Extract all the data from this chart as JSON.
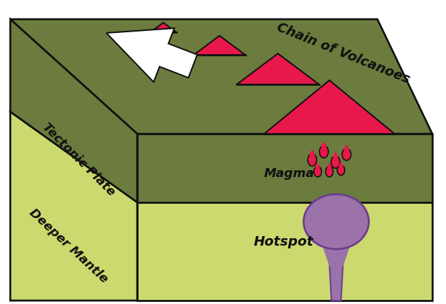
{
  "title": "Chain of Volcanoes",
  "tectonic_label": "Tectonic Plate",
  "mantle_label": "Deeper Mantle",
  "magma_label": "Magma",
  "hotspot_label": "Hotspot",
  "color_dark_green": "#6b7c3e",
  "color_light_green": "#ccd96e",
  "color_pink_volcano": "#e8194a",
  "color_hotspot": "#9b72aa",
  "color_hotspot_edge": "#6a3d8f",
  "color_black": "#111111",
  "color_white": "#ffffff",
  "bg_color": "#ffffff"
}
